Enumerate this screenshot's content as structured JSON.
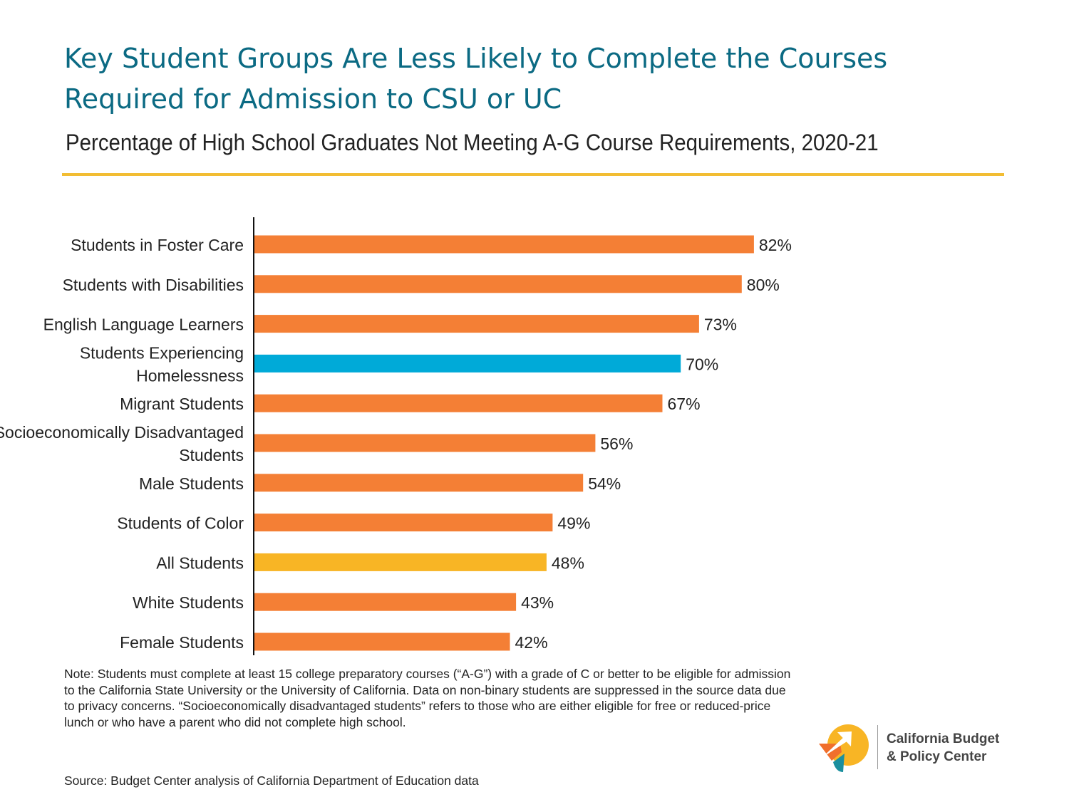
{
  "header": {
    "title_line1": "Key Student Groups Are Less Likely to Complete the Courses",
    "title_line2": "Required for Admission to CSU or UC",
    "subtitle": "Percentage of High School Graduates Not Meeting A-G Course Requirements, 2020-21"
  },
  "colors": {
    "title": "#0b6a83",
    "rule": "#f2bd33",
    "highlight_bar": "#f8b525",
    "default_bar": "#f47f35",
    "homeless_bar": "#00aad8"
  },
  "chart_data": {
    "type": "bar",
    "orientation": "horizontal",
    "categories": [
      [
        "Students in Foster Care"
      ],
      [
        "Students with Disabilities"
      ],
      [
        "English Language Learners"
      ],
      [
        "Students Experiencing",
        "Homelessness"
      ],
      [
        "Migrant Students"
      ],
      [
        "Socioeconomically Disadvantaged",
        "Students"
      ],
      [
        "Male Students"
      ],
      [
        "Students of Color"
      ],
      [
        "All Students"
      ],
      [
        "White Students"
      ],
      [
        "Female Students"
      ]
    ],
    "values": [
      82,
      80,
      73,
      70,
      67,
      56,
      54,
      49,
      48,
      43,
      42
    ],
    "value_labels": [
      "82%",
      "80%",
      "73%",
      "70%",
      "67%",
      "56%",
      "54%",
      "49%",
      "48%",
      "43%",
      "42%"
    ],
    "bar_colors": [
      "#f47f35",
      "#f47f35",
      "#f47f35",
      "#00aad8",
      "#f47f35",
      "#f47f35",
      "#f47f35",
      "#f47f35",
      "#f8b525",
      "#f47f35",
      "#f47f35"
    ],
    "xlim": [
      0,
      100
    ],
    "grid": false,
    "legend": "none"
  },
  "footer": {
    "note": "Note: Students must complete at least 15 college preparatory courses (“A-G”) with a grade of C or better to be eligible for admission to the California State University or the University of California. Data on non-binary students are suppressed in the source data due to privacy concerns. “Socioeconomically disadvantaged students” refers to those who are either eligible for free or reduced-price lunch or who have a parent who did not complete high school.",
    "source": "Source: Budget Center analysis of California Department of Education data"
  },
  "logo": {
    "line1": "California Budget",
    "line2": "& Policy Center"
  }
}
